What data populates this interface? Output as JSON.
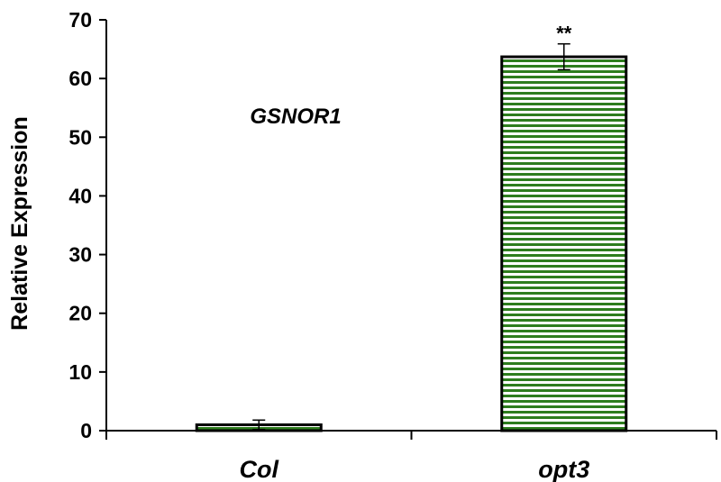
{
  "chart_data": {
    "type": "bar",
    "title": "",
    "xlabel": "",
    "ylabel": "Relative  Expression",
    "ylim": [
      0,
      70
    ],
    "yticks": [
      "0",
      "10",
      "20",
      "30",
      "40",
      "50",
      "60",
      "70"
    ],
    "categories": [
      "Col",
      "opt3"
    ],
    "values": [
      1.0,
      63.7
    ],
    "errors": [
      0.8,
      2.2
    ],
    "significance": [
      "",
      "**"
    ],
    "annotation": "GSNOR1",
    "grid": false,
    "legend": "none",
    "colors": {
      "bar_fill": "#2e7d1e",
      "bar_stripe": "#ffffff",
      "bar_edge": "#000000",
      "axis": "#000000"
    }
  }
}
